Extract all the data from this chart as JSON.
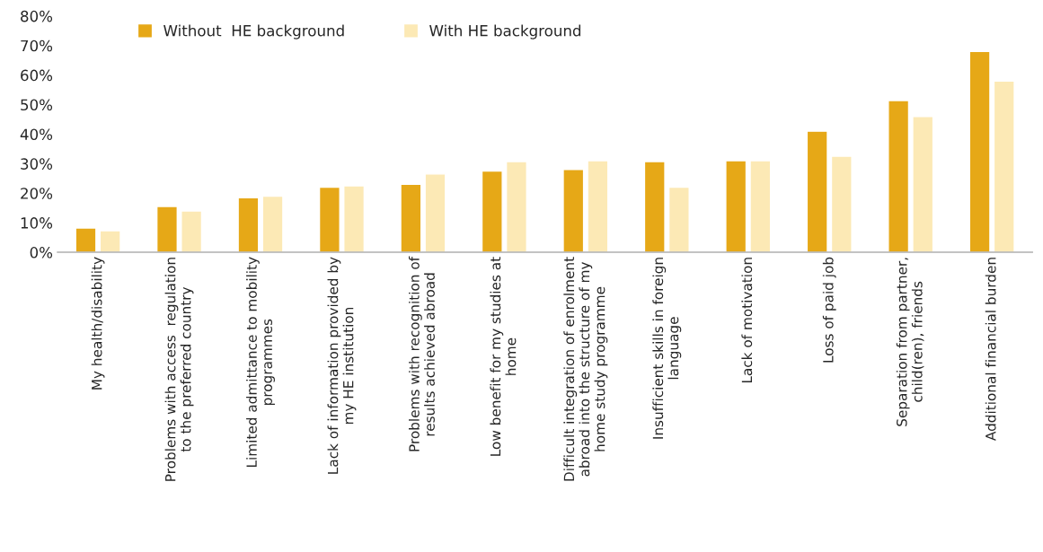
{
  "chart_data": {
    "type": "bar",
    "categories": [
      "My health/disability",
      "Problems with access  regulation\nto the preferred country",
      "Limited admittance to mobility\nprogrammes",
      "Lack of information provided by\nmy HE institution",
      "Problems with recognition of\nresults achieved abroad",
      "Low benefit for my studies at\nhome",
      "Difficult integration of enrolment\nabroad into the structure of my\nhome study programme",
      "Insufficient skills in foreign\nlanguage",
      "Lack of motivation",
      "Loss of paid job",
      "Separation from partner,\nchild(ren), friends",
      "Additional financial burden"
    ],
    "series": [
      {
        "name": "Without  HE background",
        "color": "#e6a817",
        "values": [
          8.2,
          15.5,
          18.5,
          22,
          23,
          27.5,
          28,
          30.7,
          31,
          41,
          51.4,
          68
        ]
      },
      {
        "name": "With HE background",
        "color": "#fce9b5",
        "values": [
          7.3,
          14,
          19,
          22.5,
          26.5,
          30.7,
          31,
          22,
          31,
          32.5,
          46,
          58
        ]
      }
    ],
    "ylim": [
      0,
      80
    ],
    "yticks": [
      {
        "value": 0,
        "label": "0%"
      },
      {
        "value": 10,
        "label": "10%"
      },
      {
        "value": 20,
        "label": "20%"
      },
      {
        "value": 30,
        "label": "30%"
      },
      {
        "value": 40,
        "label": "40%"
      },
      {
        "value": 50,
        "label": "50%"
      },
      {
        "value": 60,
        "label": "60%"
      },
      {
        "value": 70,
        "label": "70%"
      },
      {
        "value": 80,
        "label": "80%"
      }
    ],
    "grid": false,
    "legend": "top left"
  }
}
